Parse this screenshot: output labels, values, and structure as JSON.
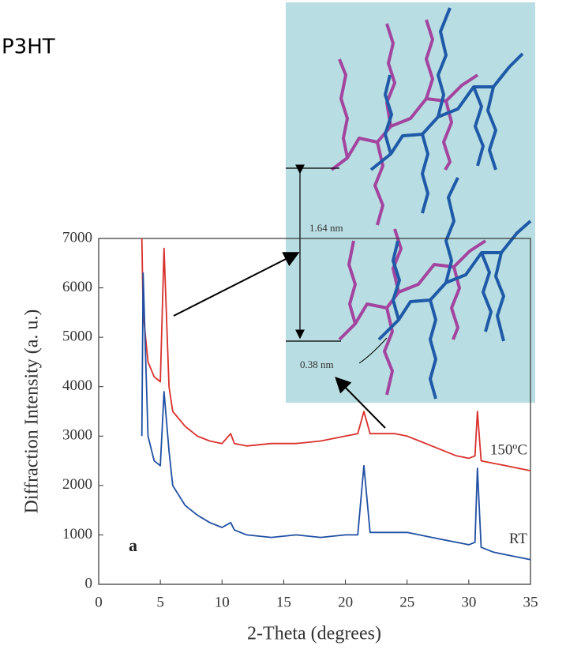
{
  "chart_data": {
    "type": "line",
    "annotations": [
      "P3HT",
      "a",
      "1.64 nm",
      "0.38 nm"
    ],
    "xlabel": "2-Theta (degrees)",
    "ylabel": "Diffraction Intensity (a. u.)",
    "x": [
      3.5,
      3.6,
      4,
      4.5,
      5,
      5.3,
      5.7,
      6,
      7,
      8,
      9,
      10,
      10.7,
      11,
      12,
      14,
      16,
      18,
      20,
      21,
      21.5,
      22,
      23,
      24,
      25,
      26,
      27,
      28,
      29,
      30,
      30.5,
      30.7,
      31,
      32,
      33,
      34,
      35
    ],
    "series": [
      {
        "name": "150ºC",
        "color": "#d9302c",
        "values": [
          7000,
          5500,
          4500,
          4200,
          4100,
          6800,
          4000,
          3500,
          3200,
          3000,
          2900,
          2850,
          3050,
          2850,
          2800,
          2850,
          2850,
          2900,
          3000,
          3050,
          3500,
          3050,
          3050,
          3050,
          3000,
          2900,
          2800,
          2700,
          2600,
          2550,
          2600,
          3500,
          2500,
          2450,
          2400,
          2350,
          2300
        ]
      },
      {
        "name": "RT",
        "color": "#1f4fa3",
        "values": [
          3000,
          6300,
          3000,
          2500,
          2400,
          3900,
          2700,
          2000,
          1600,
          1400,
          1250,
          1150,
          1250,
          1100,
          1000,
          950,
          1000,
          950,
          1000,
          1000,
          2400,
          1050,
          1050,
          1050,
          1050,
          1000,
          950,
          900,
          850,
          800,
          850,
          2350,
          750,
          650,
          600,
          550,
          500
        ]
      }
    ],
    "xlim": [
      0,
      35
    ],
    "xticks": [
      0,
      5,
      10,
      15,
      20,
      25,
      30,
      35
    ],
    "ylim": [
      0,
      7000
    ],
    "yticks": [
      0,
      1000,
      2000,
      3000,
      4000,
      5000,
      6000,
      7000
    ],
    "grid": false
  }
}
